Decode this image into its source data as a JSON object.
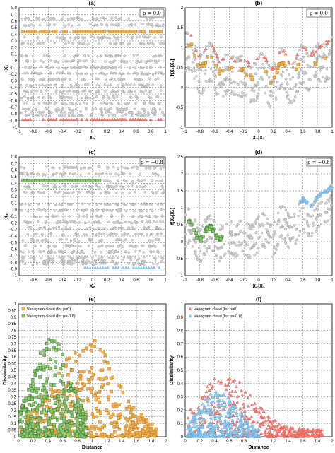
{
  "figure": {
    "panel_titles": [
      "(a)",
      "(b)",
      "(c)",
      "(d)",
      "(e)",
      "(f)"
    ]
  },
  "colors": {
    "grey_marker": "#c8c8c8",
    "orange_marker": "#f0b050",
    "orange_edge": "#c08020",
    "red_marker": "#e85a50",
    "green_marker": "#8cc870",
    "green_edge": "#3a7a30",
    "blue_marker": "#5aa8e0",
    "grid": "#000000"
  },
  "chart_data": [
    {
      "panel": "(a)",
      "type": "scatter",
      "title": "(a)",
      "xlabel": "X₂",
      "ylabel": "X₁",
      "annotation": "ρ = 0.0",
      "xlim": [
        -1,
        1
      ],
      "ylim": [
        -1,
        1
      ],
      "xticks": [
        "-1",
        "-0.8",
        "-0.6",
        "-0.4",
        "-0.2",
        "0",
        "0.2",
        "0.4",
        "0.6",
        "0.8",
        "1"
      ],
      "yticks": [
        "-1",
        "-0.9",
        "-0.8",
        "-0.7",
        "-0.6",
        "-0.5",
        "-0.4",
        "-0.3",
        "-0.2",
        "-0.1",
        "0",
        "0.1",
        "0.2",
        "0.3",
        "0.4",
        "0.5",
        "0.6",
        "0.7",
        "0.8"
      ],
      "series": [
        {
          "marker": "circle",
          "color": "grey",
          "bands_y": [
            0.82,
            0.71,
            0.6,
            0.5,
            0.4,
            0.2,
            0.1,
            0.0,
            -0.1,
            -0.2,
            -0.3,
            -0.4,
            -0.5,
            -0.6,
            -0.7,
            -0.75,
            -0.8
          ]
        },
        {
          "marker": "square",
          "color": "orange",
          "y": 0.6,
          "x_range": [
            -0.95,
            0.95
          ]
        },
        {
          "marker": "triangle",
          "color": "red",
          "y": -0.87,
          "x_range": [
            -0.95,
            0.95
          ]
        }
      ]
    },
    {
      "panel": "(b)",
      "type": "scatter",
      "title": "(b)",
      "xlabel": "X₂|X₁",
      "ylabel": "f(X₂|X₁)",
      "annotation": "ρ = 0.0",
      "xlim": [
        -1,
        1
      ],
      "ylim": [
        -1,
        2
      ],
      "xticks": [
        "-1",
        "-0.8",
        "-0.6",
        "-0.4",
        "-0.2",
        "0",
        "0.2",
        "0.4",
        "0.6",
        "0.8",
        "1"
      ],
      "yticks": [
        "-1",
        "-0.5",
        "0",
        "0.5",
        "1",
        "1.5",
        "2"
      ],
      "series": [
        {
          "marker": "circle",
          "color": "grey",
          "curve": "wavy U-shape, spread"
        },
        {
          "marker": "triangle",
          "color": "red",
          "curve": "upper envelope"
        },
        {
          "marker": "square",
          "color": "orange",
          "curve": "middle envelope"
        }
      ]
    },
    {
      "panel": "(c)",
      "type": "scatter",
      "title": "(c)",
      "xlabel": "X₂",
      "ylabel": "X₁",
      "annotation": "ρ = −0.8",
      "xlim": [
        -1,
        1
      ],
      "ylim": [
        -1,
        1
      ],
      "xticks": [
        "-1",
        "-0.8",
        "-0.6",
        "-0.4",
        "-0.2",
        "0",
        "0.2",
        "0.4",
        "0.6",
        "0.8",
        "1"
      ],
      "yticks": [
        "-1",
        "-0.9",
        "-0.8",
        "-0.7",
        "-0.6",
        "-0.5",
        "-0.4",
        "-0.3",
        "-0.2",
        "-0.1",
        "0",
        "0.1",
        "0.2",
        "0.3",
        "0.4",
        "0.5",
        "0.6",
        "0.7",
        "0.8"
      ],
      "series": [
        {
          "marker": "circle",
          "color": "grey"
        },
        {
          "marker": "square",
          "color": "green",
          "y": 0.6,
          "x_range": [
            -0.95,
            0.15
          ]
        },
        {
          "marker": "triangle",
          "color": "blue",
          "y": -0.87,
          "x_range": [
            -0.1,
            0.95
          ]
        }
      ]
    },
    {
      "panel": "(d)",
      "type": "scatter",
      "title": "(d)",
      "xlabel": "X₂|X₁",
      "ylabel": "f(X₂|X₁)",
      "annotation": "ρ = −0.8",
      "xlim": [
        -1,
        1
      ],
      "ylim": [
        -1,
        2.5
      ],
      "xticks": [
        "-1",
        "-0.8",
        "-0.6",
        "-0.4",
        "-0.2",
        "0",
        "0.2",
        "0.4",
        "0.6",
        "0.8",
        "1"
      ],
      "yticks": [
        "-1",
        "-0.5",
        "0",
        "0.5",
        "1",
        "1.5",
        "2",
        "2.5"
      ],
      "series": [
        {
          "marker": "circle",
          "color": "grey"
        },
        {
          "marker": "square",
          "color": "green",
          "x_range": [
            -0.95,
            -0.5
          ]
        },
        {
          "marker": "triangle",
          "color": "blue",
          "x_range": [
            0.6,
            1.0
          ]
        }
      ]
    },
    {
      "panel": "(e)",
      "type": "scatter",
      "title": "(e)",
      "xlabel": "Distance",
      "ylabel": "Dissimilarity",
      "xlim": [
        0,
        2
      ],
      "ylim": [
        0,
        1
      ],
      "xticks": [
        "0",
        "0.2",
        "0.4",
        "0.6",
        "0.8",
        "1",
        "1.2",
        "1.4",
        "1.6",
        "1.8",
        "2"
      ],
      "yticks": [
        "0",
        "0.05",
        "0.1",
        "0.15",
        "0.2",
        "0.25",
        "0.3",
        "0.35",
        "0.4",
        "0.45",
        "0.5",
        "0.55",
        "0.6",
        "0.65",
        "0.7",
        "0.75",
        "0.8",
        "0.85",
        "0.9",
        "0.95",
        "1"
      ],
      "legend": [
        "Variogram cloud (for ρ=0)",
        "Variogram cloud (for ρ=-0.8)"
      ],
      "legend_position": "top-left",
      "series": [
        {
          "name": "Variogram cloud (for ρ=0)",
          "marker": "square",
          "color": "orange"
        },
        {
          "name": "Variogram cloud (for ρ=-0.8)",
          "marker": "square",
          "color": "green"
        }
      ]
    },
    {
      "panel": "(f)",
      "type": "scatter",
      "title": "(f)",
      "xlabel": "Distance",
      "ylabel": "Dissimilarity",
      "xlim": [
        0,
        2
      ],
      "ylim": [
        0,
        1
      ],
      "xticks": [
        "0",
        "0.2",
        "0.4",
        "0.6",
        "0.8",
        "1",
        "1.2",
        "1.4",
        "1.6",
        "1.8",
        "2"
      ],
      "yticks": [
        "0",
        "0.1",
        "0.2",
        "0.3",
        "0.4",
        "0.5",
        "0.6",
        "0.7",
        "0.8",
        "0.9",
        "1"
      ],
      "legend": [
        "Variogram cloud (for ρ=0)",
        "Variogram cloud (for ρ=-0.8)"
      ],
      "legend_position": "top-left",
      "series": [
        {
          "name": "Variogram cloud (for ρ=0)",
          "marker": "triangle",
          "color": "red"
        },
        {
          "name": "Variogram cloud (for ρ=-0.8)",
          "marker": "triangle",
          "color": "blue"
        }
      ]
    }
  ]
}
